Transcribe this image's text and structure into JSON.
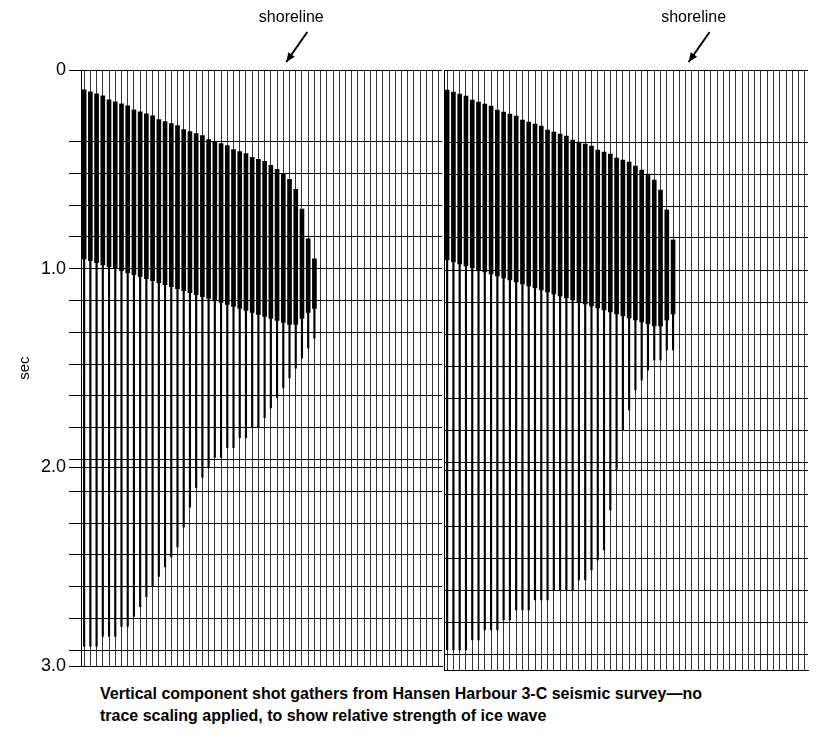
{
  "chart_data": [
    {
      "type": "bar",
      "y_label": "sec",
      "ylim": [
        0,
        3
      ],
      "yticks": [
        0,
        {
          "value": 1,
          "label": "1.0"
        },
        {
          "value": 2,
          "label": "2.0"
        },
        {
          "value": 3,
          "label": "3.0"
        }
      ],
      "timing_lines": [
        0.36,
        0.52,
        0.68,
        0.84,
        1.16,
        1.32,
        1.48,
        1.64,
        1.8,
        1.96,
        2.12,
        2.28,
        2.44,
        2.6,
        2.76,
        2.92
      ],
      "grid": true,
      "tick_labels": "y",
      "color": "#000000",
      "annotation": {
        "text": "shoreline",
        "trace": 32
      },
      "categories": [
        null,
        null,
        null,
        null,
        null,
        null,
        null,
        null,
        null,
        null,
        null,
        null,
        null,
        null,
        null,
        null,
        null,
        null,
        null,
        null,
        null,
        null,
        null,
        null,
        null,
        null,
        null,
        null,
        null,
        null,
        null,
        null,
        null,
        null,
        null,
        null,
        null,
        null,
        null,
        null,
        null,
        null,
        null,
        null,
        null,
        null,
        null,
        null,
        null,
        null,
        null,
        null,
        null,
        null,
        null,
        null,
        null,
        null
      ],
      "first_arrival": [
        0.1,
        0.11,
        0.12,
        0.13,
        0.15,
        0.16,
        0.17,
        0.18,
        0.2,
        0.21,
        0.22,
        0.23,
        0.25,
        0.26,
        0.27,
        0.28,
        0.3,
        0.31,
        0.32,
        0.33,
        0.35,
        0.36,
        0.37,
        0.38,
        0.4,
        0.41,
        0.42,
        0.44,
        0.45,
        0.46,
        0.48,
        0.5,
        0.52,
        0.55,
        0.6,
        0.7,
        0.85,
        0.95,
        null,
        null,
        null,
        null,
        null,
        null,
        null,
        null,
        null,
        null,
        null,
        null,
        null,
        null,
        null,
        null,
        null,
        null,
        null,
        null
      ],
      "strong_end": [
        0.95,
        0.96,
        0.97,
        0.98,
        0.99,
        1.0,
        1.01,
        1.02,
        1.03,
        1.04,
        1.05,
        1.06,
        1.07,
        1.08,
        1.09,
        1.1,
        1.11,
        1.12,
        1.13,
        1.14,
        1.15,
        1.16,
        1.17,
        1.18,
        1.19,
        1.2,
        1.21,
        1.22,
        1.23,
        1.24,
        1.25,
        1.26,
        1.27,
        1.28,
        1.28,
        1.25,
        1.22,
        1.2,
        null,
        null,
        null,
        null,
        null,
        null,
        null,
        null,
        null,
        null,
        null,
        null,
        null,
        null,
        null,
        null,
        null,
        null,
        null,
        null
      ],
      "signal_end": [
        2.9,
        2.9,
        2.9,
        2.85,
        2.85,
        2.85,
        2.8,
        2.8,
        2.75,
        2.7,
        2.65,
        2.6,
        2.55,
        2.5,
        2.45,
        2.4,
        2.3,
        2.2,
        2.1,
        2.05,
        2.0,
        1.95,
        1.95,
        1.9,
        1.9,
        1.85,
        1.85,
        1.8,
        1.8,
        1.75,
        1.7,
        1.65,
        1.6,
        1.55,
        1.5,
        1.45,
        1.4,
        1.35,
        null,
        null,
        null,
        null,
        null,
        null,
        null,
        null,
        null,
        null,
        null,
        null,
        null,
        null,
        null,
        null,
        null,
        null,
        null,
        null
      ]
    },
    {
      "type": "bar",
      "ylim": [
        0,
        3
      ],
      "yticks": [
        0,
        {
          "value": 1,
          "label": "1.0"
        },
        {
          "value": 2,
          "label": "2.0"
        },
        {
          "value": 3,
          "label": "3.0"
        }
      ],
      "timing_lines": [
        0.36,
        0.52,
        0.68,
        0.84,
        1.16,
        1.32,
        1.48,
        1.64,
        1.8,
        1.96,
        2.12,
        2.28,
        2.44,
        2.6,
        2.76,
        2.92
      ],
      "grid": true,
      "tick_labels": false,
      "color": "#000000",
      "annotation": {
        "text": "shoreline",
        "trace": 38
      },
      "categories": [
        null,
        null,
        null,
        null,
        null,
        null,
        null,
        null,
        null,
        null,
        null,
        null,
        null,
        null,
        null,
        null,
        null,
        null,
        null,
        null,
        null,
        null,
        null,
        null,
        null,
        null,
        null,
        null,
        null,
        null,
        null,
        null,
        null,
        null,
        null,
        null,
        null,
        null,
        null,
        null,
        null,
        null,
        null,
        null,
        null,
        null,
        null,
        null,
        null,
        null,
        null,
        null,
        null,
        null,
        null,
        null,
        null,
        null
      ],
      "first_arrival": [
        0.1,
        0.11,
        0.12,
        0.13,
        0.15,
        0.16,
        0.17,
        0.18,
        0.2,
        0.21,
        0.22,
        0.23,
        0.25,
        0.26,
        0.27,
        0.28,
        0.3,
        0.31,
        0.32,
        0.33,
        0.35,
        0.36,
        0.37,
        0.38,
        0.4,
        0.41,
        0.42,
        0.44,
        0.45,
        0.46,
        0.48,
        0.5,
        0.52,
        0.55,
        0.6,
        0.7,
        0.85,
        null,
        null,
        null,
        null,
        null,
        null,
        null,
        null,
        null,
        null,
        null,
        null,
        null,
        null,
        null,
        null,
        null,
        null,
        null,
        null,
        null
      ],
      "strong_end": [
        0.95,
        0.96,
        0.97,
        0.98,
        0.99,
        1.0,
        1.01,
        1.02,
        1.03,
        1.04,
        1.05,
        1.06,
        1.07,
        1.08,
        1.09,
        1.1,
        1.11,
        1.12,
        1.13,
        1.14,
        1.15,
        1.16,
        1.17,
        1.18,
        1.19,
        1.2,
        1.21,
        1.22,
        1.23,
        1.24,
        1.25,
        1.26,
        1.27,
        1.28,
        1.28,
        1.25,
        1.22,
        null,
        null,
        null,
        null,
        null,
        null,
        null,
        null,
        null,
        null,
        null,
        null,
        null,
        null,
        null,
        null,
        null,
        null,
        null,
        null,
        null
      ],
      "signal_end": [
        2.9,
        2.9,
        2.9,
        2.9,
        2.85,
        2.85,
        2.8,
        2.8,
        2.8,
        2.75,
        2.75,
        2.7,
        2.7,
        2.7,
        2.65,
        2.65,
        2.65,
        2.6,
        2.6,
        2.6,
        2.6,
        2.55,
        2.55,
        2.5,
        2.45,
        2.4,
        2.2,
        2.0,
        1.8,
        1.7,
        1.6,
        1.55,
        1.5,
        1.45,
        1.45,
        1.4,
        1.4,
        null,
        null,
        null,
        null,
        null,
        null,
        null,
        null,
        null,
        null,
        null,
        null,
        null,
        null,
        null,
        null,
        null,
        null,
        null,
        null,
        null
      ]
    }
  ],
  "caption": "Vertical component shot gathers from Hansen Harbour 3-C seismic survey—no trace scaling applied, to show relative strength of ice wave"
}
